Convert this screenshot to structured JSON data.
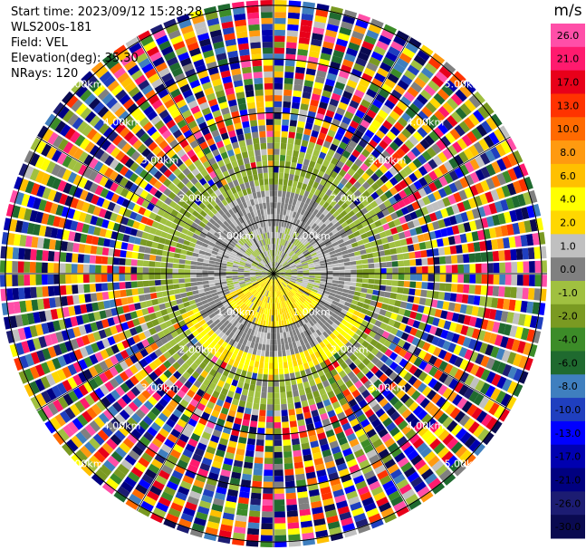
{
  "header": {
    "start_time": "Start time: 2023/09/12 15:28:28",
    "instrument": "WLS200s-181",
    "field": "Field: VEL",
    "elevation": "Elevation(deg): 35.30",
    "nrays": "NRays: 120"
  },
  "chart_data": {
    "type": "ppi",
    "field": "VEL",
    "units": "m/s",
    "n_rays": 120,
    "elevation_deg": 35.3,
    "range_ring_labels_km": [
      "1.00km",
      "2.00km",
      "3.00km",
      "4.00km",
      "5.00km"
    ],
    "range_rings_km": [
      1,
      2,
      3,
      4,
      5
    ],
    "max_range_km": 5.1,
    "colorbar": {
      "label": "m/s",
      "tick_labels": [
        "26.0",
        "21.0",
        "17.0",
        "13.0",
        "10.0",
        "8.0",
        "6.0",
        "4.0",
        "2.0",
        "1.0",
        "0.0",
        "-1.0",
        "-2.0",
        "-4.0",
        "-6.0",
        "-8.0",
        "-10.0",
        "-13.0",
        "-17.0",
        "-21.0",
        "-26.0",
        "-30.0"
      ],
      "colors": [
        "#ff4fa8",
        "#ff1a6e",
        "#e8001a",
        "#ff3300",
        "#ff6a00",
        "#ff9a10",
        "#ffc000",
        "#ffff00",
        "#ffd700",
        "#c0c0c0",
        "#808080",
        "#a0c040",
        "#7a9a22",
        "#3c8c28",
        "#1f6a2f",
        "#3f7fbf",
        "#1f3fbf",
        "#0000ff",
        "#0000b0",
        "#000080",
        "#1c1c72",
        "#0a0a50"
      ]
    },
    "pattern": {
      "near_field_value_ms": 0.0,
      "inner_green_band_km": [
        1.0,
        2.0
      ],
      "yellow_region": "below center, about 0.5-1.5 km",
      "outer_region": "noisy multicolor beyond ~2.5 km"
    }
  }
}
